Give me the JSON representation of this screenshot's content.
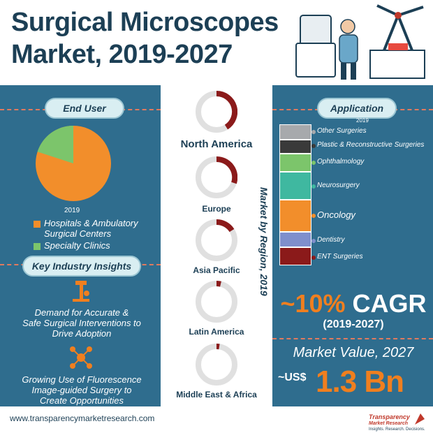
{
  "header": {
    "title_line1": "Surgical Microscopes",
    "title_line2": "Market, 2019-2027"
  },
  "end_user": {
    "heading": "End User",
    "year": "2019",
    "legend": [
      {
        "label_line1": "Hospitals & Ambulatory",
        "label_line2": "Surgical Centers",
        "color": "#f28e2b"
      },
      {
        "label_line1": "Specialty Clinics",
        "label_line2": "",
        "color": "#7cc56b"
      }
    ]
  },
  "key_insights": {
    "heading": "Key Industry Insights",
    "items": [
      {
        "line1": "Demand for Accurate &",
        "line2": "Safe Surgical Interventions to",
        "line3": "Drive Adoption",
        "icon": "microscope-icon"
      },
      {
        "line1": "Growing Use of Fluorescence",
        "line2": "Image-guided Surgery to",
        "line3": "Create Opportunities",
        "icon": "network-icon"
      }
    ]
  },
  "regions": {
    "vertical_label": "Market by Region, 2019",
    "items": [
      {
        "label": "North America"
      },
      {
        "label": "Europe"
      },
      {
        "label": "Asia Pacific"
      },
      {
        "label": "Latin America"
      },
      {
        "label": "Middle East & Africa"
      }
    ]
  },
  "application": {
    "heading": "Application",
    "year": "2019",
    "segments": [
      {
        "label": "Other Surgeries",
        "color": "#a7a9ac"
      },
      {
        "label": "Plastic & Reconstructive Surgeries",
        "color": "#3a3a3a"
      },
      {
        "label": "Ophthalmology",
        "color": "#7cc56b"
      },
      {
        "label": "Neurosurgery",
        "color": "#3fb8a0"
      },
      {
        "label": "Oncology",
        "color": "#f28e2b"
      },
      {
        "label": "Dentistry",
        "color": "#7f8fcc"
      },
      {
        "label": "ENT Surgeries",
        "color": "#8b1a1a"
      }
    ]
  },
  "cagr": {
    "value": "~10%",
    "label": "CAGR",
    "years": "(2019-2027)"
  },
  "market_value": {
    "title": "Market Value, 2027",
    "prefix": "~US$",
    "value": "1.3 Bn"
  },
  "footer": {
    "url": "www.transparencymarketresearch.com",
    "logo_line1": "Transparency",
    "logo_line2": "Market Research",
    "logo_tagline": "Insights. Research. Decisions."
  },
  "colors": {
    "panel": "#2f6d8e",
    "title": "#1c3f55",
    "accent": "#f07f1f",
    "donut_fill": "#8b1a1a"
  }
}
